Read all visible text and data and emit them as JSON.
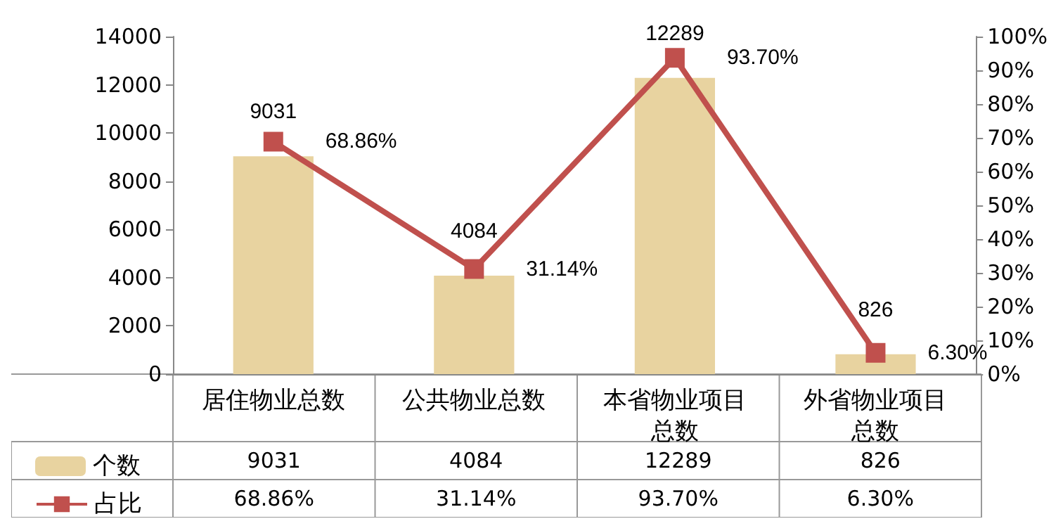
{
  "chart_data": {
    "type": "bar",
    "categories": [
      "居住物业总数",
      "公共物业总数",
      "本省物业项目总数",
      "外省物业项目总数"
    ],
    "series": [
      {
        "name": "个数",
        "color": "#e8d3a0",
        "values": [
          9031,
          4084,
          12289,
          826
        ],
        "value_labels": [
          "9031",
          "4084",
          "12289",
          "826"
        ]
      },
      {
        "name": "占比",
        "type": "line",
        "axis": "y2",
        "color": "#c0504d",
        "values": [
          68.86,
          31.14,
          93.7,
          6.3
        ],
        "value_labels": [
          "68.86%",
          "31.14%",
          "93.70%",
          "6.30%"
        ]
      }
    ],
    "ylim": [
      0,
      14000
    ],
    "yticks": [
      0,
      2000,
      4000,
      6000,
      8000,
      10000,
      12000,
      14000
    ],
    "y2lim": [
      0,
      100
    ],
    "y2ticks": [
      {
        "value": 0,
        "label": "0%"
      },
      {
        "value": 10,
        "label": "10%"
      },
      {
        "value": 20,
        "label": "20%"
      },
      {
        "value": 30,
        "label": "30%"
      },
      {
        "value": 40,
        "label": "40%"
      },
      {
        "value": 50,
        "label": "50%"
      },
      {
        "value": 60,
        "label": "60%"
      },
      {
        "value": 70,
        "label": "70%"
      },
      {
        "value": 80,
        "label": "80%"
      },
      {
        "value": 90,
        "label": "90%"
      },
      {
        "value": 100,
        "label": "100%"
      }
    ],
    "grid": false,
    "legend": "bottom",
    "marker": "square",
    "line_style": "solid"
  }
}
